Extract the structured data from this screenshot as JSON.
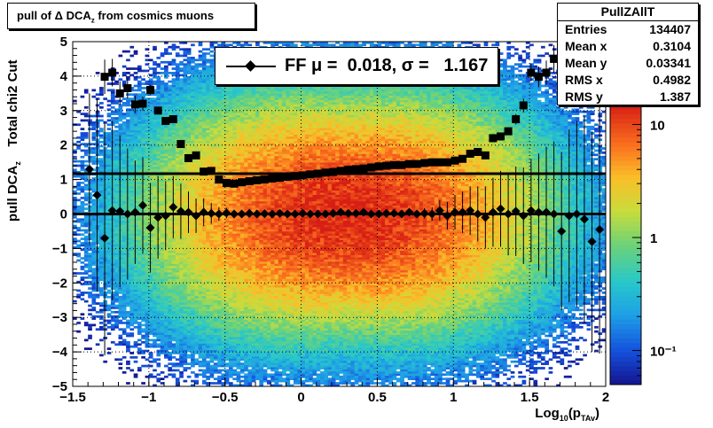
{
  "title": {
    "prefix": "pull of ",
    "delta": "Δ",
    "main": " DCA",
    "sub": "z",
    "suffix": "  from cosmics muons"
  },
  "stats": {
    "name": "PullZAllT",
    "rows": [
      {
        "key": "Entries",
        "value": "134407"
      },
      {
        "key": "Mean x",
        "value": "0.3104"
      },
      {
        "key": "Mean y",
        "value": "0.03341"
      },
      {
        "key": "RMS x",
        "value": "0.4982"
      },
      {
        "key": "RMS y",
        "value": "1.387"
      }
    ]
  },
  "fit_legend": {
    "text": "FF μ =  0.018, σ =   1.167"
  },
  "y_axis_title": {
    "main": "pull DCA",
    "sub": "z",
    "extra": "Total chi2 Cut"
  },
  "x_axis_title": {
    "main": "Log",
    "sub10": "10",
    "mid": "(p",
    "sub2": "TAv",
    "end": ")"
  },
  "chart_data": {
    "type": "heatmap",
    "xlim": [
      -1.5,
      2.0
    ],
    "ylim": [
      -5,
      5
    ],
    "x_ticks": [
      "−1.5",
      "−1",
      "−0.5",
      "0",
      "0.5",
      "1",
      "1.5",
      "2"
    ],
    "y_ticks": [
      "−5",
      "−4",
      "−3",
      "−2",
      "−1",
      "0",
      "1",
      "2",
      "3",
      "4",
      "5"
    ],
    "colorbar": {
      "scale": "log",
      "range": [
        0.05,
        15
      ],
      "tick_labels": [
        {
          "value": 10,
          "label": "10"
        },
        {
          "value": 1,
          "label": "1"
        },
        {
          "value": 0.1,
          "label": "10⁻¹"
        }
      ]
    },
    "grid": true,
    "fit_lines": [
      {
        "y": 0.0
      },
      {
        "y": 1.17
      }
    ],
    "mean_profile": {
      "x": [
        -1.39,
        -1.34,
        -1.29,
        -1.24,
        -1.19,
        -1.14,
        -1.09,
        -1.04,
        -0.99,
        -0.94,
        -0.89,
        -0.84,
        -0.79,
        -0.74,
        -0.69,
        -0.64,
        -0.59,
        -0.54,
        -0.49,
        -0.44,
        -0.39,
        -0.34,
        -0.29,
        -0.24,
        -0.19,
        -0.14,
        -0.09,
        -0.04,
        0.01,
        0.06,
        0.11,
        0.16,
        0.21,
        0.26,
        0.31,
        0.36,
        0.41,
        0.46,
        0.51,
        0.56,
        0.61,
        0.66,
        0.71,
        0.76,
        0.81,
        0.86,
        0.91,
        0.96,
        1.01,
        1.06,
        1.11,
        1.16,
        1.21,
        1.26,
        1.31,
        1.36,
        1.41,
        1.46,
        1.51,
        1.56,
        1.61,
        1.66,
        1.71,
        1.76,
        1.81,
        1.86,
        1.91,
        1.96
      ],
      "y": [
        1.3,
        0.55,
        -0.7,
        0.1,
        0.08,
        0.0,
        0.05,
        0.25,
        -0.4,
        -0.1,
        -0.05,
        0.2,
        0.08,
        0.05,
        -0.05,
        0.05,
        0.02,
        0.0,
        0.03,
        0.0,
        0.0,
        0.02,
        0.0,
        0.01,
        0.0,
        0.02,
        0.0,
        0.0,
        0.02,
        0.0,
        0.0,
        0.0,
        0.02,
        0.05,
        0.02,
        0.02,
        0.05,
        0.0,
        0.0,
        0.02,
        0.02,
        0.0,
        0.05,
        0.0,
        0.02,
        0.0,
        0.1,
        -0.05,
        0.05,
        0.05,
        0.1,
        0.0,
        -0.1,
        0.05,
        0.15,
        0.0,
        0.08,
        -0.05,
        0.1,
        0.05,
        0.05,
        0.0,
        -0.5,
        -0.05,
        0.0,
        -0.15,
        -0.8,
        -0.45
      ],
      "err": [
        2.2,
        2.8,
        3.4,
        2.6,
        2.2,
        1.9,
        1.5,
        1.4,
        1.3,
        1.2,
        1.0,
        0.9,
        0.8,
        0.6,
        0.5,
        0.4,
        0.3,
        0.2,
        0.15,
        0.1,
        0.1,
        0.1,
        0.1,
        0.1,
        0.1,
        0.1,
        0.1,
        0.1,
        0.1,
        0.1,
        0.1,
        0.1,
        0.1,
        0.1,
        0.1,
        0.1,
        0.1,
        0.1,
        0.1,
        0.1,
        0.1,
        0.1,
        0.1,
        0.1,
        0.15,
        0.2,
        0.3,
        0.4,
        0.5,
        0.6,
        0.7,
        0.8,
        0.9,
        1.0,
        1.1,
        1.2,
        1.3,
        1.4,
        1.5,
        1.7,
        1.9,
        2.1,
        2.3,
        2.5,
        2.7,
        3.0,
        3.2,
        3.6
      ]
    },
    "rms_profile": {
      "x": [
        -1.34,
        -1.29,
        -1.24,
        -1.19,
        -1.14,
        -1.09,
        -1.04,
        -0.99,
        -0.94,
        -0.89,
        -0.84,
        -0.79,
        -0.74,
        -0.69,
        -0.64,
        -0.59,
        -0.54,
        -0.49,
        -0.44,
        -0.39,
        -0.34,
        -0.29,
        -0.24,
        -0.19,
        -0.14,
        -0.09,
        -0.04,
        0.01,
        0.06,
        0.11,
        0.16,
        0.21,
        0.26,
        0.31,
        0.36,
        0.41,
        0.46,
        0.51,
        0.56,
        0.61,
        0.66,
        0.71,
        0.76,
        0.81,
        0.86,
        0.91,
        0.96,
        1.01,
        1.06,
        1.11,
        1.16,
        1.21,
        1.26,
        1.31,
        1.36,
        1.41,
        1.46,
        1.51,
        1.56,
        1.61,
        1.66,
        1.71,
        1.76,
        1.81,
        1.86,
        1.91,
        1.96
      ],
      "y": [
        5.6,
        3.98,
        4.1,
        3.5,
        3.65,
        3.18,
        3.2,
        3.6,
        3.0,
        2.7,
        2.75,
        2.03,
        1.62,
        1.7,
        1.23,
        1.25,
        1.0,
        0.9,
        0.88,
        0.92,
        0.95,
        0.98,
        1.0,
        1.03,
        1.05,
        1.08,
        1.1,
        1.12,
        1.15,
        1.17,
        1.2,
        1.22,
        1.25,
        1.28,
        1.3,
        1.32,
        1.35,
        1.38,
        1.4,
        1.42,
        1.42,
        1.45,
        1.45,
        1.48,
        1.5,
        1.5,
        1.5,
        1.55,
        1.6,
        1.75,
        1.8,
        1.7,
        2.2,
        2.25,
        2.4,
        2.75,
        3.15,
        4.1,
        3.98,
        4.1,
        4.5,
        3.95,
        4.8,
        4.9,
        5.4,
        5.6,
        5.0
      ],
      "err": [
        0.0,
        0.5,
        0.4,
        0.35,
        0.3,
        0.25,
        0.2,
        0.15,
        0.1,
        0.08,
        0.06,
        0.05,
        0.04,
        0.03,
        0.02,
        0.02,
        0.02,
        0.02,
        0.02,
        0.02,
        0.02,
        0.02,
        0.02,
        0.02,
        0.02,
        0.02,
        0.02,
        0.02,
        0.02,
        0.02,
        0.02,
        0.02,
        0.02,
        0.02,
        0.02,
        0.02,
        0.02,
        0.02,
        0.02,
        0.02,
        0.02,
        0.02,
        0.02,
        0.02,
        0.02,
        0.02,
        0.02,
        0.02,
        0.02,
        0.02,
        0.02,
        0.05,
        0.1,
        0.1,
        0.1,
        0.15,
        0.2,
        0.25,
        0.3,
        0.35,
        0.4,
        0.4,
        0.5,
        0.5,
        0.6,
        0.6,
        0.6
      ]
    }
  }
}
